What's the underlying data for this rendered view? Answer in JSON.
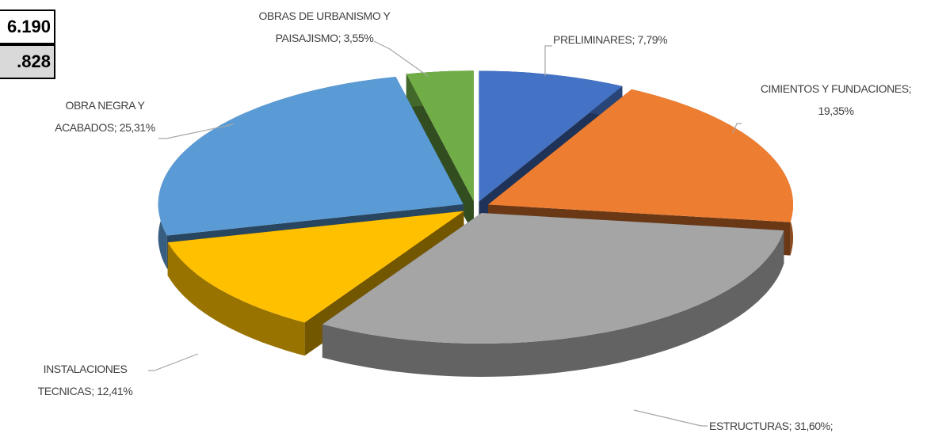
{
  "chart_data": {
    "type": "pie3d",
    "categories": [
      "PRELIMINARES",
      "CIMIENTOS Y FUNDACIONES",
      "ESTRUCTURAS",
      "INSTALACIONES TECNICAS",
      "OBRA NEGRA Y ACABADOS",
      "OBRAS DE URBANISMO Y PAISAJISMO"
    ],
    "values": [
      7.79,
      19.35,
      31.6,
      12.41,
      25.31,
      3.55
    ],
    "value_labels": [
      "7,79%",
      "19,35%",
      "31,60%;",
      "12,41%",
      "25,31%",
      "3,55%"
    ],
    "label_separator": "; ",
    "colors": [
      "#4472c4",
      "#ed7d31",
      "#a5a5a5",
      "#ffc000",
      "#5b9bd5",
      "#70ad47"
    ]
  },
  "table_cells": [
    "6.190",
    ".828"
  ]
}
